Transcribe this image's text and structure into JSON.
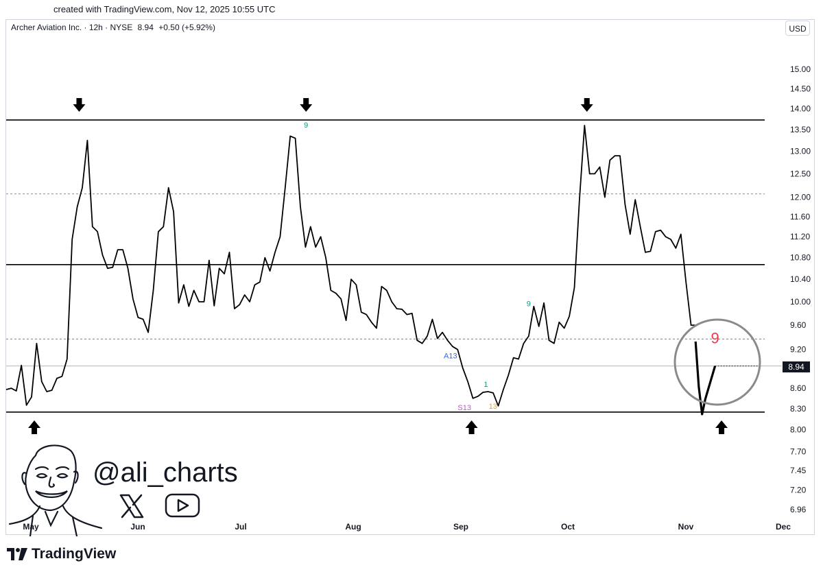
{
  "header": {
    "created": "created with TradingView.com, Nov 12, 2025 10:55 UTC",
    "symbol": "Archer Aviation Inc. · 12h · NYSE",
    "price": "8.94",
    "change": "+0.50 (+5.92%)",
    "currency": "USD"
  },
  "branding": {
    "handle": "@ali_charts",
    "logo_text": "TradingView",
    "social_icons": [
      "x-icon",
      "youtube-icon"
    ]
  },
  "colors": {
    "line": "#000000",
    "green": "#089981",
    "blue": "#2962ff",
    "purple": "#c94fd6",
    "orange": "#f0a015",
    "red": "#f23645",
    "gray_dashed": "#9598a1"
  },
  "chart_data": {
    "type": "line",
    "title": "",
    "xlabel": "",
    "ylabel": "",
    "x_ticks": [
      "May",
      "Jun",
      "Jul",
      "Aug",
      "Sep",
      "Oct",
      "Nov",
      "Dec"
    ],
    "y_ticks": [
      "15.00",
      "14.50",
      "14.00",
      "13.50",
      "13.00",
      "12.50",
      "12.00",
      "11.60",
      "11.20",
      "10.80",
      "10.40",
      "10.00",
      "9.60",
      "9.20",
      "8.94",
      "8.60",
      "8.30",
      "8.00",
      "7.70",
      "7.45",
      "7.20",
      "6.96"
    ],
    "y_scale": "log",
    "ylim": [
      6.96,
      15.0
    ],
    "last_price": 8.94,
    "series": [
      {
        "values": [
          8.58,
          8.6,
          8.56,
          8.95,
          8.35,
          8.47,
          9.3,
          8.7,
          8.55,
          8.57,
          8.75,
          8.78,
          9.05,
          11.15,
          11.8,
          12.2,
          13.25,
          11.4,
          11.3,
          10.85,
          10.6,
          10.62,
          10.95,
          10.95,
          10.6,
          10.05,
          9.73,
          9.7,
          9.48,
          10.2,
          11.3,
          11.4,
          12.2,
          11.7,
          9.98,
          10.3,
          9.92,
          10.2,
          10.0,
          10.0,
          10.75,
          9.93,
          10.6,
          10.5,
          10.9,
          9.88,
          9.95,
          10.12,
          10.0,
          10.3,
          10.35,
          10.8,
          10.55,
          10.9,
          11.2,
          12.2,
          13.35,
          13.3,
          11.8,
          11.0,
          11.4,
          11.0,
          11.2,
          10.8,
          10.2,
          10.15,
          10.05,
          9.68,
          10.4,
          10.3,
          9.82,
          9.78,
          9.65,
          9.55,
          10.27,
          10.2,
          10.0,
          9.88,
          9.87,
          9.78,
          9.8,
          9.35,
          9.3,
          9.42,
          9.7,
          9.38,
          9.48,
          9.35,
          9.25,
          9.2,
          8.91,
          8.7,
          8.45,
          8.48,
          8.54,
          8.55,
          8.53,
          8.34,
          8.58,
          8.8,
          9.07,
          9.05,
          9.3,
          9.42,
          9.92,
          9.58,
          9.98,
          9.35,
          9.3,
          9.65,
          9.55,
          9.75,
          10.25,
          11.95,
          13.6,
          12.5,
          12.5,
          12.65,
          12.0,
          12.8,
          12.9,
          12.9,
          11.85,
          11.25,
          11.95,
          11.4,
          10.9,
          10.92,
          11.3,
          11.33,
          11.2,
          11.15,
          10.98,
          11.25,
          10.35,
          9.6,
          9.6
        ],
        "extension": [
          {
            "date": "Nov 4",
            "value": 9.33
          },
          {
            "date": "Nov 5",
            "value": 8.62
          },
          {
            "date": "Nov 6",
            "value": 8.22
          },
          {
            "date": "Nov 7",
            "value": 8.44
          },
          {
            "date": "Nov 10",
            "value": 8.94
          }
        ]
      }
    ],
    "levels": [
      {
        "style": "solid",
        "value": 13.73
      },
      {
        "style": "dashed",
        "value": 12.07
      },
      {
        "style": "solid",
        "value": 10.67
      },
      {
        "style": "dashed",
        "value": 9.37
      },
      {
        "style": "solid",
        "value": 8.25
      }
    ],
    "annotations": [
      {
        "text": "9",
        "color": "green",
        "date": "Jul 19"
      },
      {
        "text": "A13",
        "color": "blue",
        "date": "Aug 29"
      },
      {
        "text": "S13",
        "color": "purple",
        "date": "Sep 2"
      },
      {
        "text": "1",
        "color": "green",
        "date": "Sep 8"
      },
      {
        "text": "13",
        "color": "orange",
        "date": "Sep 10"
      },
      {
        "text": "9",
        "color": "green",
        "date": "Sep 20"
      },
      {
        "text": "9",
        "color": "red",
        "date": "Nov 10"
      }
    ],
    "arrows": [
      {
        "direction": "down",
        "date": "May 15"
      },
      {
        "direction": "down",
        "date": "Jul 19"
      },
      {
        "direction": "down",
        "date": "Oct 6"
      },
      {
        "direction": "up",
        "date": "May 2"
      },
      {
        "direction": "up",
        "date": "Sep 4"
      },
      {
        "direction": "up",
        "date": "Nov 12"
      }
    ]
  }
}
